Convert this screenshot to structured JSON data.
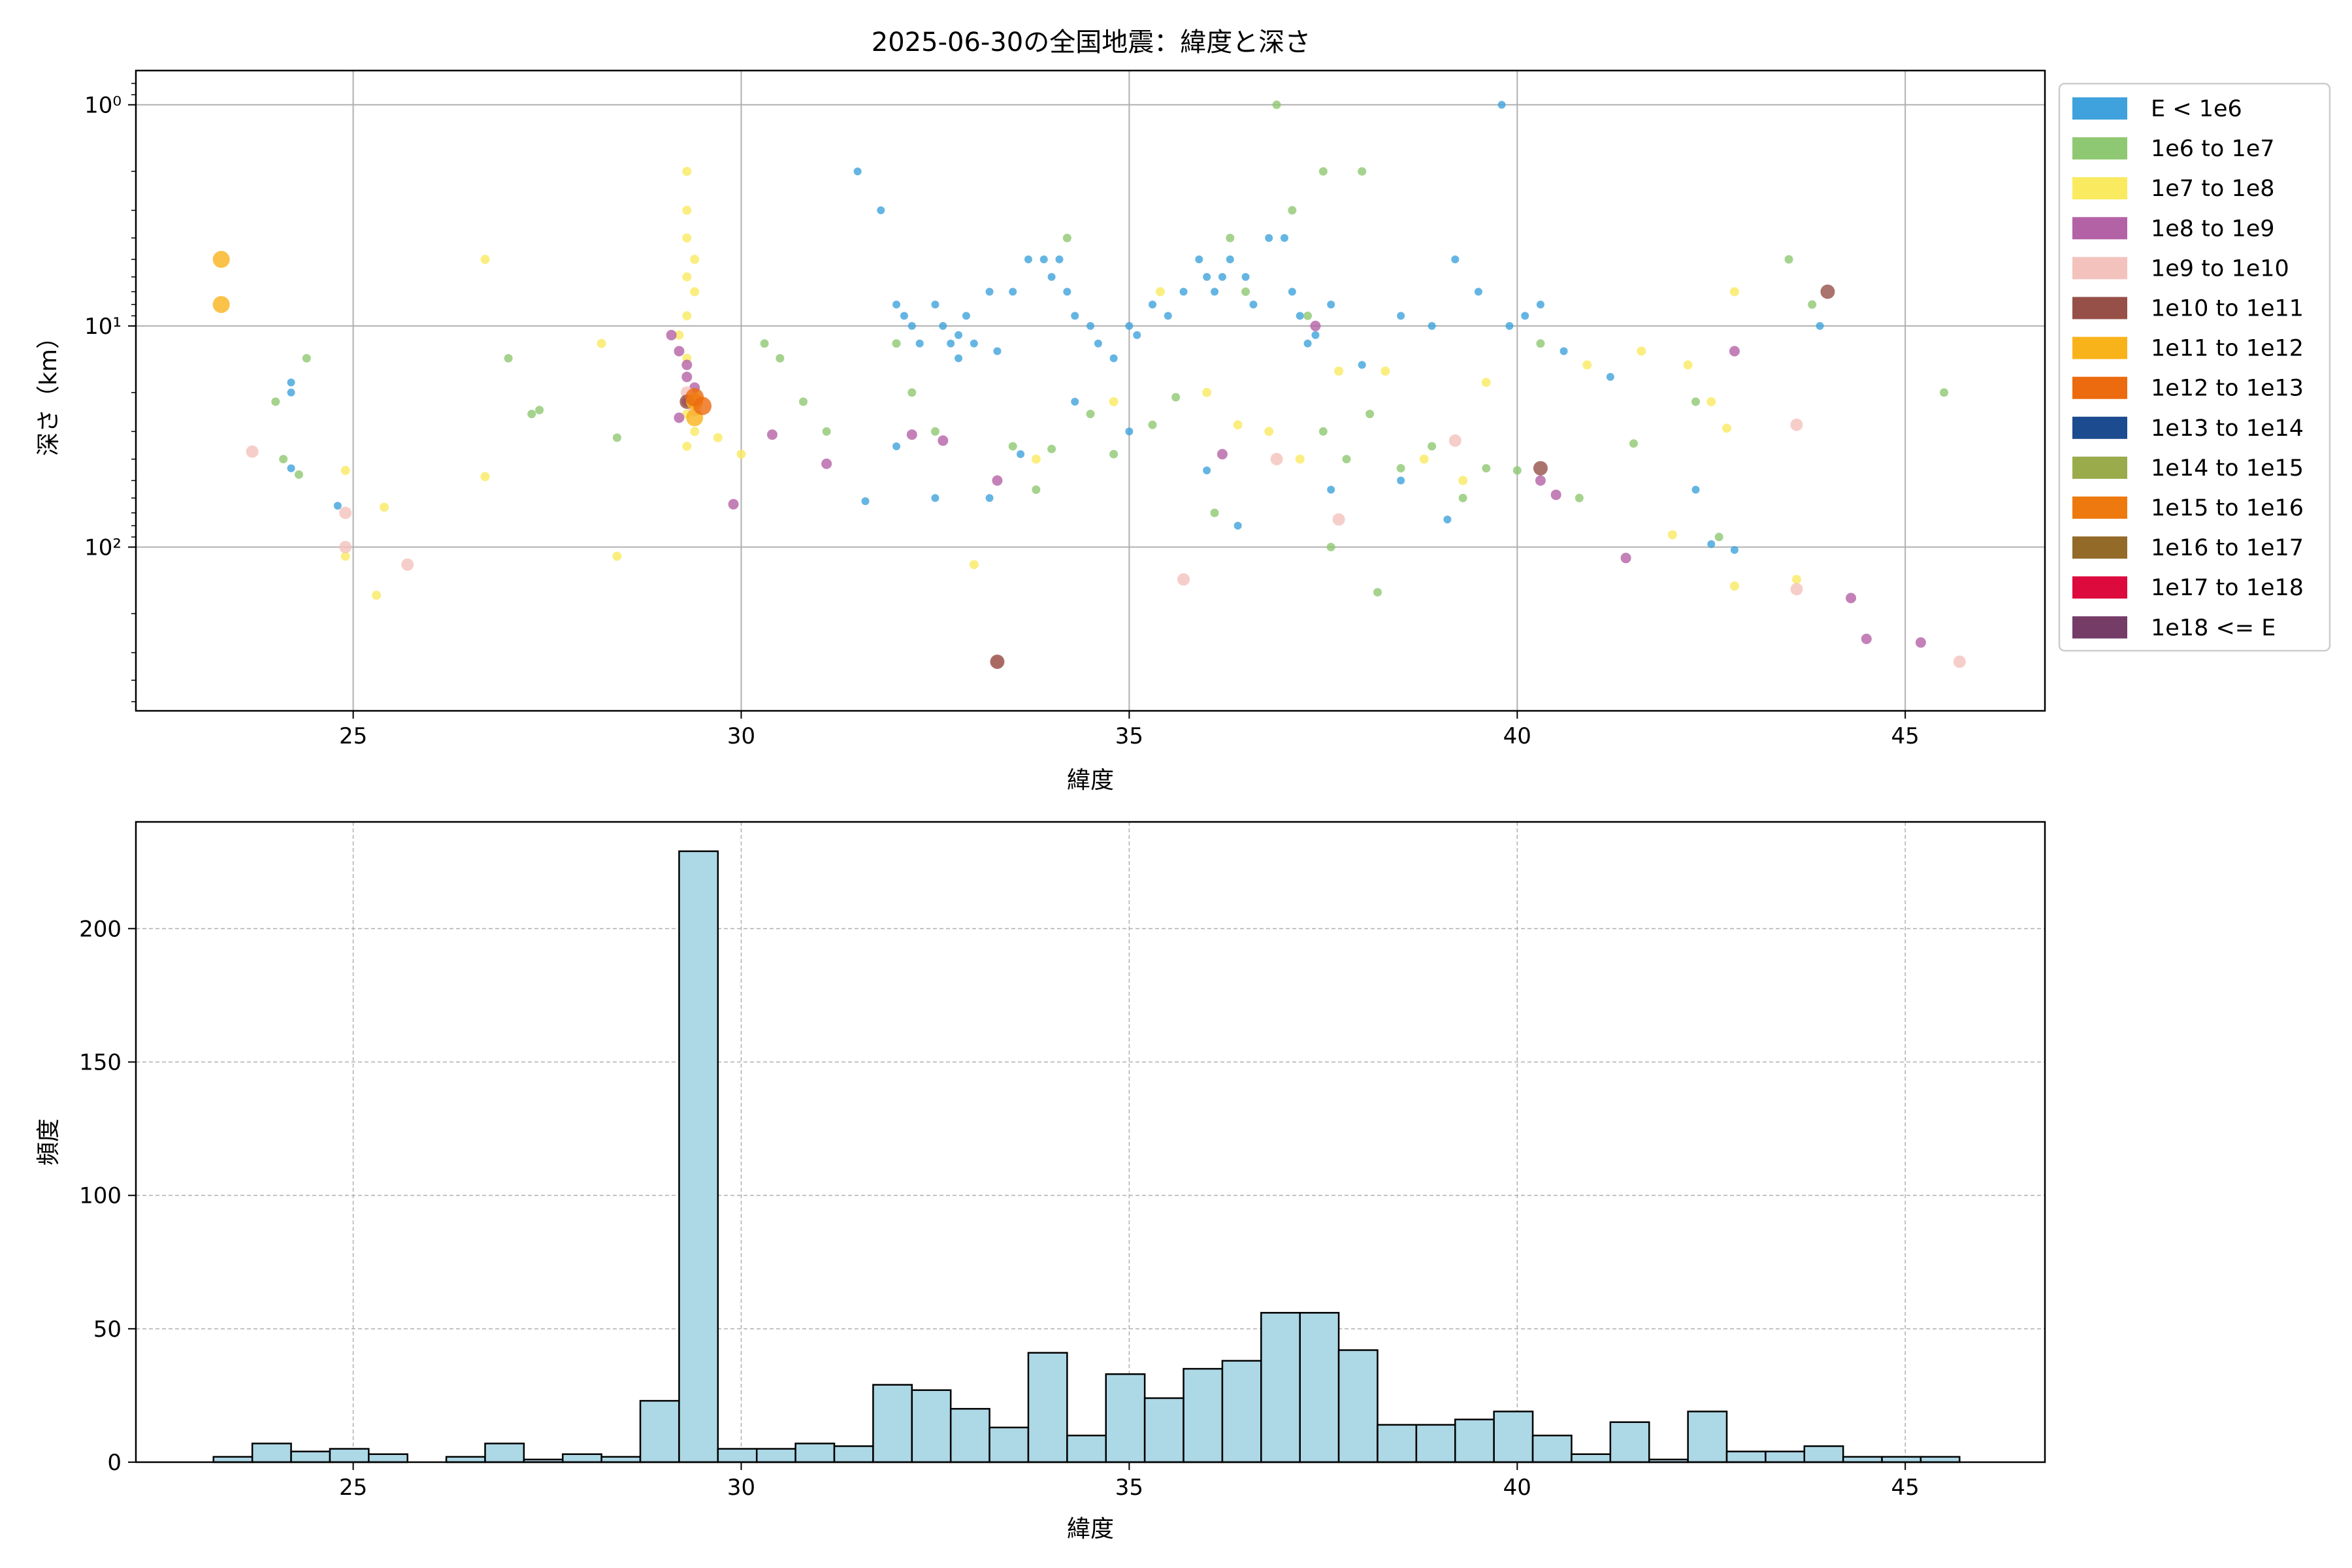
{
  "chart_data": [
    {
      "type": "scatter",
      "title": "2025-06-30の全国地震：緯度と深さ",
      "xlabel": "緯度",
      "ylabel": "深さ（km）",
      "xlim": [
        22.2,
        46.8
      ],
      "ylim": [
        0.7,
        550
      ],
      "y_scale": "log",
      "y_inverted": true,
      "grid": true,
      "legend_position": "outside-right",
      "x_ticks": [
        25,
        30,
        35,
        40,
        45
      ],
      "y_ticks": [
        1,
        10,
        100
      ],
      "y_tick_labels": [
        "10⁰",
        "10¹",
        "10²"
      ],
      "legend": [
        {
          "label": "E < 1e6",
          "color": "#3fa2dc"
        },
        {
          "label": "1e6 to 1e7",
          "color": "#8fc872"
        },
        {
          "label": "1e7 to 1e8",
          "color": "#faea60"
        },
        {
          "label": "1e8 to 1e9",
          "color": "#b462a6"
        },
        {
          "label": "1e9 to 1e10",
          "color": "#f4c2bc"
        },
        {
          "label": "1e10 to 1e11",
          "color": "#965048"
        },
        {
          "label": "1e11 to 1e12",
          "color": "#f9b31a"
        },
        {
          "label": "1e12 to 1e13",
          "color": "#ec6b0e"
        },
        {
          "label": "1e13 to 1e14",
          "color": "#1d4b8f"
        },
        {
          "label": "1e14 to 1e15",
          "color": "#9aab4c"
        },
        {
          "label": "1e15 to 1e16",
          "color": "#ee7a0f"
        },
        {
          "label": "1e16 to 1e17",
          "color": "#936a28"
        },
        {
          "label": "1e17 to 1e18",
          "color": "#dc0a3d"
        },
        {
          "label": "1e18 <= E",
          "color": "#753c68"
        }
      ],
      "series": [
        {
          "name": "E < 1e6",
          "points": [
            [
              24.2,
              18
            ],
            [
              24.2,
              20
            ],
            [
              24.2,
              44
            ],
            [
              24.8,
              65
            ],
            [
              31.5,
              2
            ],
            [
              31.8,
              3
            ],
            [
              32.0,
              8
            ],
            [
              32.1,
              9
            ],
            [
              32.2,
              10
            ],
            [
              32.3,
              12
            ],
            [
              32.5,
              8
            ],
            [
              32.6,
              10
            ],
            [
              32.7,
              12
            ],
            [
              32.8,
              14
            ],
            [
              32.8,
              11
            ],
            [
              32.9,
              9
            ],
            [
              33.0,
              12
            ],
            [
              33.2,
              7
            ],
            [
              33.3,
              13
            ],
            [
              33.5,
              7
            ],
            [
              33.7,
              5
            ],
            [
              33.9,
              5
            ],
            [
              34.0,
              6
            ],
            [
              34.1,
              5
            ],
            [
              34.2,
              7
            ],
            [
              34.3,
              9
            ],
            [
              34.5,
              10
            ],
            [
              34.6,
              12
            ],
            [
              34.8,
              14
            ],
            [
              35.0,
              10
            ],
            [
              35.1,
              11
            ],
            [
              35.3,
              8
            ],
            [
              35.5,
              9
            ],
            [
              35.7,
              7
            ],
            [
              35.9,
              5
            ],
            [
              36.0,
              6
            ],
            [
              36.1,
              7
            ],
            [
              36.2,
              6
            ],
            [
              36.3,
              5
            ],
            [
              36.5,
              6
            ],
            [
              36.6,
              8
            ],
            [
              36.8,
              4
            ],
            [
              37.0,
              4
            ],
            [
              37.1,
              7
            ],
            [
              37.2,
              9
            ],
            [
              37.3,
              12
            ],
            [
              37.4,
              11
            ],
            [
              37.6,
              8
            ],
            [
              38.0,
              15
            ],
            [
              38.5,
              9
            ],
            [
              38.9,
              10
            ],
            [
              39.2,
              5
            ],
            [
              39.5,
              7
            ],
            [
              39.8,
              1
            ],
            [
              39.9,
              10
            ],
            [
              40.1,
              9
            ],
            [
              40.3,
              8
            ],
            [
              40.6,
              13
            ],
            [
              41.2,
              17
            ],
            [
              42.3,
              55
            ],
            [
              42.5,
              97
            ],
            [
              42.8,
              103
            ],
            [
              43.9,
              10
            ],
            [
              32.0,
              35
            ],
            [
              32.5,
              60
            ],
            [
              33.2,
              60
            ],
            [
              33.6,
              38
            ],
            [
              34.3,
              22
            ],
            [
              35.0,
              30
            ],
            [
              36.0,
              45
            ],
            [
              36.4,
              80
            ],
            [
              37.6,
              55
            ],
            [
              38.5,
              50
            ],
            [
              39.1,
              75
            ],
            [
              31.6,
              62
            ]
          ]
        },
        {
          "name": "1e6 to 1e7",
          "points": [
            [
              24.0,
              22
            ],
            [
              24.4,
              14
            ],
            [
              24.3,
              47
            ],
            [
              24.1,
              40
            ],
            [
              27.0,
              14
            ],
            [
              27.3,
              25
            ],
            [
              27.4,
              24
            ],
            [
              28.4,
              32
            ],
            [
              30.3,
              12
            ],
            [
              30.5,
              14
            ],
            [
              30.8,
              22
            ],
            [
              31.1,
              30
            ],
            [
              32.0,
              12
            ],
            [
              32.5,
              30
            ],
            [
              33.5,
              35
            ],
            [
              33.8,
              55
            ],
            [
              34.2,
              4
            ],
            [
              34.5,
              25
            ],
            [
              34.8,
              38
            ],
            [
              35.3,
              28
            ],
            [
              35.6,
              21
            ],
            [
              36.1,
              70
            ],
            [
              36.3,
              4
            ],
            [
              36.5,
              7
            ],
            [
              36.9,
              1
            ],
            [
              37.1,
              3
            ],
            [
              37.3,
              9
            ],
            [
              37.5,
              30
            ],
            [
              37.6,
              100
            ],
            [
              37.8,
              40
            ],
            [
              38.1,
              25
            ],
            [
              38.5,
              44
            ],
            [
              38.9,
              35
            ],
            [
              39.3,
              60
            ],
            [
              39.6,
              44
            ],
            [
              40.0,
              45
            ],
            [
              40.3,
              12
            ],
            [
              40.8,
              60
            ],
            [
              41.5,
              34
            ],
            [
              42.3,
              22
            ],
            [
              42.6,
              90
            ],
            [
              43.5,
              5
            ],
            [
              45.5,
              20
            ],
            [
              43.8,
              8
            ],
            [
              38.2,
              160
            ],
            [
              37.5,
              2
            ],
            [
              38.0,
              2
            ],
            [
              34.0,
              36
            ],
            [
              32.2,
              20
            ]
          ]
        },
        {
          "name": "1e7 to 1e8",
          "points": [
            [
              29.3,
              2
            ],
            [
              29.3,
              3
            ],
            [
              29.3,
              4
            ],
            [
              29.4,
              5
            ],
            [
              29.3,
              6
            ],
            [
              29.4,
              7
            ],
            [
              29.3,
              9
            ],
            [
              29.2,
              11
            ],
            [
              29.3,
              14
            ],
            [
              29.4,
              20
            ],
            [
              29.3,
              25
            ],
            [
              29.4,
              30
            ],
            [
              29.3,
              35
            ],
            [
              26.7,
              5
            ],
            [
              26.7,
              48
            ],
            [
              28.2,
              12
            ],
            [
              28.4,
              110
            ],
            [
              29.7,
              32
            ],
            [
              30.0,
              38
            ],
            [
              24.9,
              45
            ],
            [
              25.4,
              66
            ],
            [
              25.3,
              165
            ],
            [
              33.0,
              120
            ],
            [
              33.8,
              40
            ],
            [
              34.8,
              22
            ],
            [
              35.4,
              7
            ],
            [
              36.0,
              20
            ],
            [
              36.4,
              28
            ],
            [
              36.8,
              30
            ],
            [
              37.2,
              40
            ],
            [
              37.7,
              16
            ],
            [
              38.3,
              16
            ],
            [
              38.8,
              40
            ],
            [
              39.3,
              50
            ],
            [
              39.6,
              18
            ],
            [
              40.9,
              15
            ],
            [
              42.2,
              15
            ],
            [
              42.5,
              22
            ],
            [
              42.7,
              29
            ],
            [
              42.8,
              7
            ],
            [
              43.6,
              140
            ],
            [
              42.8,
              150
            ],
            [
              42.0,
              88
            ],
            [
              41.6,
              13
            ],
            [
              24.9,
              110
            ]
          ]
        },
        {
          "name": "1e8 to 1e9",
          "points": [
            [
              29.1,
              11
            ],
            [
              29.2,
              13
            ],
            [
              29.3,
              17
            ],
            [
              29.4,
              19
            ],
            [
              29.3,
              22
            ],
            [
              29.2,
              26
            ],
            [
              29.3,
              15
            ],
            [
              29.9,
              64
            ],
            [
              30.4,
              31
            ],
            [
              31.1,
              42
            ],
            [
              32.2,
              31
            ],
            [
              32.6,
              33
            ],
            [
              33.3,
              50
            ],
            [
              36.2,
              38
            ],
            [
              37.4,
              10
            ],
            [
              40.3,
              50
            ],
            [
              40.5,
              58
            ],
            [
              41.4,
              112
            ],
            [
              42.8,
              13
            ],
            [
              44.3,
              170
            ],
            [
              44.5,
              260
            ],
            [
              45.2,
              270
            ]
          ]
        },
        {
          "name": "1e9 to 1e10",
          "points": [
            [
              23.7,
              37
            ],
            [
              29.3,
              20
            ],
            [
              29.4,
              24
            ],
            [
              24.9,
              100
            ],
            [
              24.9,
              70
            ],
            [
              25.7,
              120
            ],
            [
              33.3,
              330
            ],
            [
              35.7,
              140
            ],
            [
              36.9,
              40
            ],
            [
              37.7,
              75
            ],
            [
              39.2,
              33
            ],
            [
              43.6,
              28
            ],
            [
              43.6,
              155
            ],
            [
              45.7,
              330
            ]
          ]
        },
        {
          "name": "1e10 to 1e11",
          "points": [
            [
              29.3,
              22
            ],
            [
              33.3,
              330
            ],
            [
              40.3,
              44
            ],
            [
              44.0,
              7
            ]
          ]
        },
        {
          "name": "1e11 to 1e12",
          "points": [
            [
              23.3,
              5
            ],
            [
              23.3,
              8
            ],
            [
              29.4,
              22
            ],
            [
              29.4,
              26
            ]
          ]
        },
        {
          "name": "1e12 to 1e13",
          "points": [
            [
              29.4,
              21
            ],
            [
              29.5,
              23
            ]
          ]
        }
      ]
    },
    {
      "type": "bar",
      "title": "",
      "xlabel": "緯度",
      "ylabel": "頻度",
      "xlim": [
        22.2,
        46.8
      ],
      "ylim": [
        0,
        240
      ],
      "grid": true,
      "bar_color": "#add8e6",
      "x_ticks": [
        25,
        30,
        35,
        40,
        45
      ],
      "y_ticks": [
        0,
        50,
        100,
        150,
        200
      ],
      "bin_start": 23.2,
      "bin_width": 0.5,
      "values": [
        2,
        7,
        4,
        5,
        3,
        0,
        2,
        7,
        1,
        3,
        2,
        23,
        229,
        5,
        5,
        7,
        6,
        29,
        27,
        20,
        13,
        41,
        10,
        33,
        24,
        35,
        38,
        56,
        56,
        42,
        14,
        14,
        16,
        19,
        10,
        3,
        15,
        1,
        19,
        4,
        4,
        6,
        2,
        2,
        2
      ]
    }
  ]
}
